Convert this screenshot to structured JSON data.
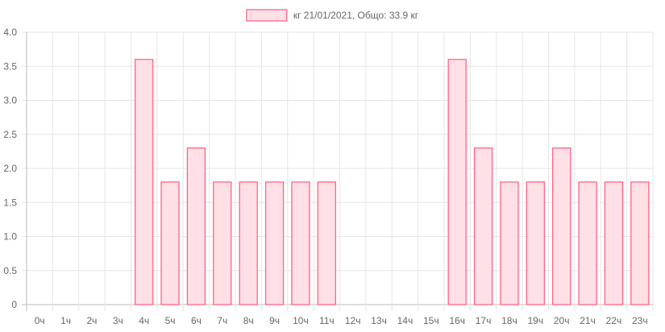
{
  "chart_data": {
    "type": "bar",
    "title": "",
    "xlabel": "",
    "ylabel": "",
    "legend": {
      "position": "top-center",
      "label": "кг 21/01/2021, Общо: 33.9 кг"
    },
    "categories": [
      "0ч",
      "1ч",
      "2ч",
      "3ч",
      "4ч",
      "5ч",
      "6ч",
      "7ч",
      "8ч",
      "9ч",
      "10ч",
      "11ч",
      "12ч",
      "13ч",
      "14ч",
      "15ч",
      "16ч",
      "17ч",
      "18ч",
      "19ч",
      "20ч",
      "21ч",
      "22ч",
      "23ч"
    ],
    "series": [
      {
        "name": "кг 21/01/2021, Общо: 33.9 кг",
        "values": [
          0,
          0,
          0,
          0,
          3.6,
          1.8,
          2.3,
          1.8,
          1.8,
          1.8,
          1.8,
          1.8,
          0,
          0,
          0,
          0,
          3.6,
          2.3,
          1.8,
          1.8,
          2.3,
          1.8,
          1.8,
          1.8
        ]
      }
    ],
    "ylim": [
      0,
      4.0
    ],
    "yticks": [
      "0",
      "0.5",
      "1.0",
      "1.5",
      "2.0",
      "2.5",
      "3.0",
      "3.5",
      "4.0"
    ],
    "grid": true,
    "colors": {
      "fill": "#ffe0e6",
      "border": "#ff6384",
      "grid": "#e5e5e5",
      "axis": "#bbbbbb",
      "text": "#666666"
    }
  }
}
